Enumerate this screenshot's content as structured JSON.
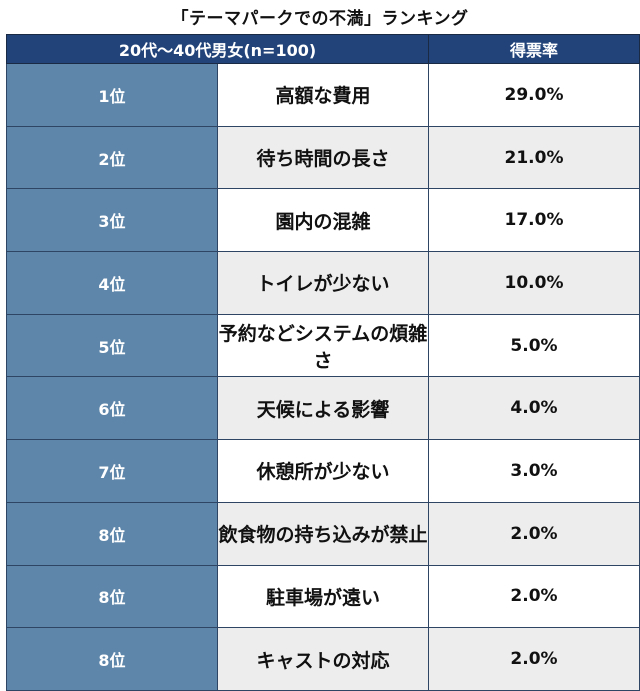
{
  "title": "「テーマパークでの不満」ランキング",
  "header": {
    "group_label": "20代〜40代男女(n=100)",
    "rate_label": "得票率"
  },
  "rows": [
    {
      "rank": "1位",
      "item": "高額な費用",
      "rate": "29.0%"
    },
    {
      "rank": "2位",
      "item": "待ち時間の長さ",
      "rate": "21.0%"
    },
    {
      "rank": "3位",
      "item": "園内の混雑",
      "rate": "17.0%"
    },
    {
      "rank": "4位",
      "item": "トイレが少ない",
      "rate": "10.0%"
    },
    {
      "rank": "5位",
      "item": "予約などシステムの煩雑さ",
      "rate": "5.0%"
    },
    {
      "rank": "6位",
      "item": "天候による影響",
      "rate": "4.0%"
    },
    {
      "rank": "7位",
      "item": "休憩所が少ない",
      "rate": "3.0%"
    },
    {
      "rank": "8位",
      "item": "飲食物の持ち込みが禁止",
      "rate": "2.0%"
    },
    {
      "rank": "8位",
      "item": "駐車場が遠い",
      "rate": "2.0%"
    },
    {
      "rank": "8位",
      "item": "キャストの対応",
      "rate": "2.0%"
    }
  ]
}
